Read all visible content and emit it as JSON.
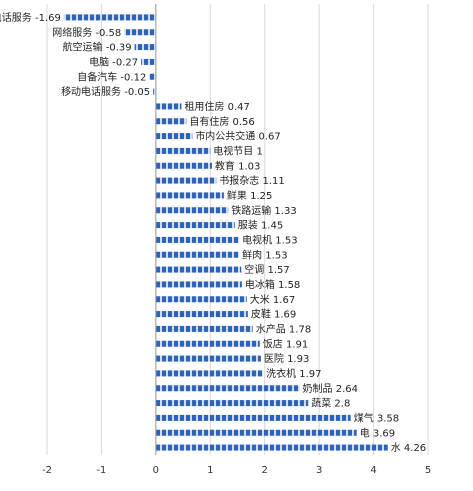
{
  "chart_data": {
    "type": "bar",
    "orientation": "horizontal",
    "title": "",
    "xlabel": "",
    "ylabel": "",
    "xlim": [
      -2,
      5
    ],
    "x_ticks": [
      -2,
      -1,
      0,
      1,
      2,
      3,
      4,
      5
    ],
    "grid": true,
    "bar_color": "#2e63b8",
    "pattern": "dashed-fill",
    "categories": [
      "固定电话服务",
      "网络服务",
      "航空运输",
      "电脑",
      "自备汽车",
      "移动电话服务",
      "租用住房",
      "自有住房",
      "市内公共交通",
      "电视节目",
      "教育",
      "书报杂志",
      "鲜果",
      "铁路运输",
      "服装",
      "电视机",
      "鲜肉",
      "空调",
      "电冰箱",
      "大米",
      "皮鞋",
      "水产品",
      "饭店",
      "医院",
      "洗衣机",
      "奶制品",
      "蔬菜",
      "煤气",
      "电",
      "水"
    ],
    "values": [
      -1.69,
      -0.58,
      -0.39,
      -0.27,
      -0.12,
      -0.05,
      0.47,
      0.56,
      0.67,
      1,
      1.03,
      1.11,
      1.25,
      1.33,
      1.45,
      1.53,
      1.53,
      1.57,
      1.58,
      1.67,
      1.69,
      1.78,
      1.91,
      1.93,
      1.97,
      2.64,
      2.8,
      3.58,
      3.69,
      4.26
    ],
    "value_labels": [
      "-1.69",
      "-0.58",
      "-0.39",
      "-0.27",
      "-0.12",
      "-0.05",
      "0.47",
      "0.56",
      "0.67",
      "1",
      "1.03",
      "1.11",
      "1.25",
      "1.33",
      "1.45",
      "1.53",
      "1.53",
      "1.57",
      "1.58",
      "1.67",
      "1.69",
      "1.78",
      "1.91",
      "1.93",
      "1.97",
      "2.64",
      "2.8",
      "3.58",
      "3.69",
      "4.26"
    ]
  }
}
